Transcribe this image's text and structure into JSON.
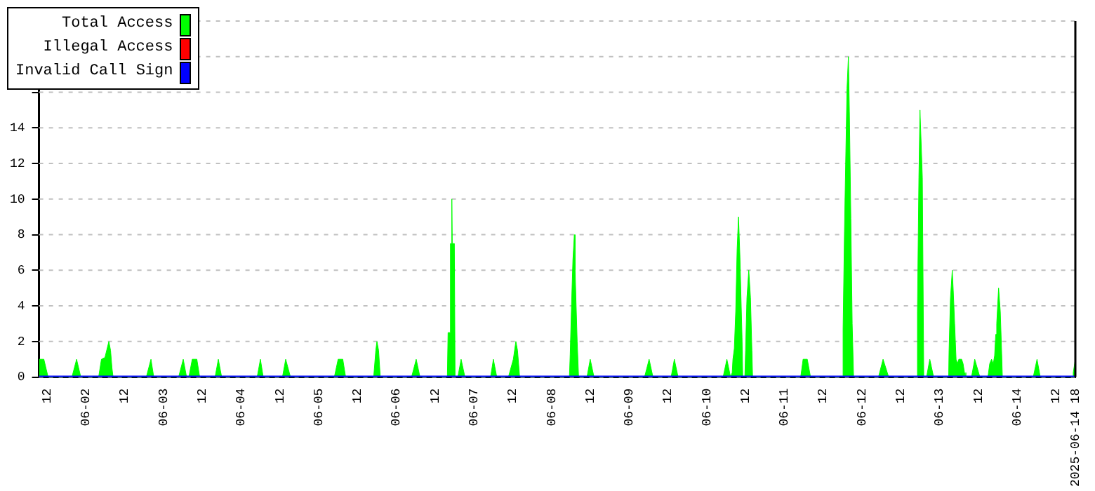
{
  "chart_data": {
    "type": "area",
    "xlim": [
      "2025-06-01T09:30",
      "2025-06-14T18:00"
    ],
    "xticks": [
      {
        "value": "2025-06-01T12:00",
        "label": "12"
      },
      {
        "value": "2025-06-02T00:00",
        "label": "06-02"
      },
      {
        "value": "2025-06-02T12:00",
        "label": "12"
      },
      {
        "value": "2025-06-03T00:00",
        "label": "06-03"
      },
      {
        "value": "2025-06-03T12:00",
        "label": "12"
      },
      {
        "value": "2025-06-04T00:00",
        "label": "06-04"
      },
      {
        "value": "2025-06-04T12:00",
        "label": "12"
      },
      {
        "value": "2025-06-05T00:00",
        "label": "06-05"
      },
      {
        "value": "2025-06-05T12:00",
        "label": "12"
      },
      {
        "value": "2025-06-06T00:00",
        "label": "06-06"
      },
      {
        "value": "2025-06-06T12:00",
        "label": "12"
      },
      {
        "value": "2025-06-07T00:00",
        "label": "06-07"
      },
      {
        "value": "2025-06-07T12:00",
        "label": "12"
      },
      {
        "value": "2025-06-08T00:00",
        "label": "06-08"
      },
      {
        "value": "2025-06-08T12:00",
        "label": "12"
      },
      {
        "value": "2025-06-09T00:00",
        "label": "06-09"
      },
      {
        "value": "2025-06-09T12:00",
        "label": "12"
      },
      {
        "value": "2025-06-10T00:00",
        "label": "06-10"
      },
      {
        "value": "2025-06-10T12:00",
        "label": "12"
      },
      {
        "value": "2025-06-11T00:00",
        "label": "06-11"
      },
      {
        "value": "2025-06-11T12:00",
        "label": "12"
      },
      {
        "value": "2025-06-12T00:00",
        "label": "06-12"
      },
      {
        "value": "2025-06-12T12:00",
        "label": "12"
      },
      {
        "value": "2025-06-13T00:00",
        "label": "06-13"
      },
      {
        "value": "2025-06-13T12:00",
        "label": "12"
      },
      {
        "value": "2025-06-14T00:00",
        "label": "06-14"
      },
      {
        "value": "2025-06-14T12:00",
        "label": "12"
      },
      {
        "value": "2025-06-14T18:00",
        "label": "2025-06-14 18"
      }
    ],
    "ylim": [
      0,
      20
    ],
    "yticks": [
      0,
      2,
      4,
      6,
      8,
      10,
      12,
      14,
      {
        "value": 16,
        "label": null
      },
      {
        "value": 18,
        "label": null
      },
      {
        "value": 20,
        "label": null
      }
    ],
    "grid": "y",
    "legend": "top left",
    "series": [
      {
        "name": "Total Access",
        "color": "#00ff00",
        "x": [
          "2025-06-01T09:30",
          "2025-06-01T11:00",
          "2025-06-01T12:18",
          "2025-06-01T19:41",
          "2025-06-01T21:07",
          "2025-06-01T22:25",
          "2025-06-02T03:56",
          "2025-06-02T04:48",
          "2025-06-02T05:53",
          "2025-06-02T07:06",
          "2025-06-02T07:37",
          "2025-06-02T08:04",
          "2025-06-02T08:24",
          "2025-06-02T18:41",
          "2025-06-02T20:07",
          "2025-06-02T20:59",
          "2025-06-03T04:40",
          "2025-06-03T06:06",
          "2025-06-03T07:08",
          "2025-06-03T07:50",
          "2025-06-03T08:53",
          "2025-06-03T10:19",
          "2025-06-03T11:11",
          "2025-06-03T15:57",
          "2025-06-03T16:57",
          "2025-06-03T17:59",
          "2025-06-04T04:58",
          "2025-06-04T05:58",
          "2025-06-04T06:50",
          "2025-06-04T12:47",
          "2025-06-04T13:47",
          "2025-06-04T15:16",
          "2025-06-05T04:50",
          "2025-06-05T06:00",
          "2025-06-05T07:27",
          "2025-06-05T08:19",
          "2025-06-05T17:00",
          "2025-06-05T17:39",
          "2025-06-05T18:00",
          "2025-06-05T18:31",
          "2025-06-05T19:02",
          "2025-06-06T04:43",
          "2025-06-06T06:09",
          "2025-06-06T07:19",
          "2025-06-06T15:47",
          "2025-06-06T16:00",
          "2025-06-06T16:39",
          "2025-06-06T16:44",
          "2025-06-06T17:05",
          "2025-06-06T17:10",
          "2025-06-06T17:18",
          "2025-06-06T17:57",
          "2025-06-06T18:10",
          "2025-06-06T19:02",
          "2025-06-06T20:02",
          "2025-06-06T21:13",
          "2025-06-07T05:09",
          "2025-06-07T06:01",
          "2025-06-07T07:04",
          "2025-06-07T10:40",
          "2025-06-07T12:11",
          "2025-06-07T12:58",
          "2025-06-07T13:29",
          "2025-06-07T14:08",
          "2025-06-08T05:32",
          "2025-06-08T05:46",
          "2025-06-08T06:11",
          "2025-06-08T06:37",
          "2025-06-08T07:04",
          "2025-06-08T07:17",
          "2025-06-08T07:56",
          "2025-06-08T08:22",
          "2025-06-08T10:58",
          "2025-06-08T11:58",
          "2025-06-08T13:08",
          "2025-06-09T04:46",
          "2025-06-09T06:11",
          "2025-06-09T07:22",
          "2025-06-09T12:59",
          "2025-06-09T13:59",
          "2025-06-09T15:09",
          "2025-06-10T05:04",
          "2025-06-10T06:14",
          "2025-06-10T07:22",
          "2025-06-10T07:53",
          "2025-06-10T08:06",
          "2025-06-10T08:32",
          "2025-06-10T08:58",
          "2025-06-10T09:24",
          "2025-06-10T09:50",
          "2025-06-10T10:16",
          "2025-06-10T10:55",
          "2025-06-10T11:08",
          "2025-06-10T11:47",
          "2025-06-10T12:01",
          "2025-06-10T12:26",
          "2025-06-10T13:00",
          "2025-06-10T13:32",
          "2025-06-10T13:58",
          "2025-06-10T14:11",
          "2025-06-11T05:04",
          "2025-06-11T05:48",
          "2025-06-11T07:06",
          "2025-06-11T08:06",
          "2025-06-11T17:57",
          "2025-06-11T18:10",
          "2025-06-11T18:36",
          "2025-06-11T19:02",
          "2025-06-11T19:23",
          "2025-06-11T19:49",
          "2025-06-11T20:07",
          "2025-06-11T20:34",
          "2025-06-11T20:59",
          "2025-06-11T21:25",
          "2025-06-12T05:07",
          "2025-06-12T06:32",
          "2025-06-12T08:16",
          "2025-06-12T16:57",
          "2025-06-12T17:10",
          "2025-06-12T17:37",
          "2025-06-12T17:57",
          "2025-06-12T18:41",
          "2025-06-12T19:07",
          "2025-06-12T19:59",
          "2025-06-12T20:59",
          "2025-06-12T22:10",
          "2025-06-13T02:49",
          "2025-06-13T02:56",
          "2025-06-13T03:22",
          "2025-06-13T03:56",
          "2025-06-13T04:14",
          "2025-06-13T04:40",
          "2025-06-13T05:07",
          "2025-06-13T05:32",
          "2025-06-13T05:58",
          "2025-06-13T06:50",
          "2025-06-13T07:17",
          "2025-06-13T07:43",
          "2025-06-13T08:08",
          "2025-06-13T09:53",
          "2025-06-13T10:53",
          "2025-06-13T12:29",
          "2025-06-13T14:58",
          "2025-06-13T15:31",
          "2025-06-13T16:05",
          "2025-06-13T16:37",
          "2025-06-13T17:02",
          "2025-06-13T17:23",
          "2025-06-13T17:41",
          "2025-06-13T18:16",
          "2025-06-13T18:47",
          "2025-06-13T19:13",
          "2025-06-13T19:26",
          "2025-06-14T04:59",
          "2025-06-14T06:09",
          "2025-06-14T07:09",
          "2025-06-14T17:08",
          "2025-06-14T17:21",
          "2025-06-14T17:47",
          "2025-06-14T18:00"
        ],
        "values": [
          1,
          1,
          0,
          0,
          1,
          0,
          0,
          1,
          1.1,
          2,
          1.5,
          0.5,
          0,
          0,
          1,
          0,
          0,
          1,
          0,
          0,
          1,
          1,
          0,
          0,
          1,
          0,
          0,
          1,
          0,
          0,
          1,
          0,
          0,
          1,
          1,
          0,
          0,
          1.5,
          2,
          1.5,
          0,
          0,
          1,
          0,
          0,
          2.5,
          2.5,
          7.5,
          7.5,
          10,
          7.5,
          7.5,
          0,
          0,
          1,
          0,
          0,
          1,
          0,
          0,
          1,
          2,
          1.5,
          0,
          0,
          1.25,
          4,
          6.6,
          8,
          6,
          2,
          0,
          0,
          1,
          0,
          0,
          1,
          0,
          0,
          1,
          0,
          0,
          1,
          0,
          0.25,
          1,
          1.6,
          3.7,
          7.2,
          9,
          6.75,
          2.2,
          0,
          0,
          1.5,
          4.45,
          6,
          4.45,
          1.5,
          0,
          0,
          1,
          1,
          0,
          0,
          2.7,
          8.2,
          12.7,
          16.2,
          18,
          14.9,
          8.9,
          3,
          0,
          0,
          1,
          0,
          0,
          3.7,
          11.2,
          15,
          11.2,
          0,
          0,
          1,
          0,
          0,
          1.4,
          4.4,
          6,
          4.9,
          3,
          1,
          0.75,
          1,
          1,
          0.75,
          0.25,
          0,
          0,
          1,
          0,
          0,
          0.75,
          1,
          0.75,
          1.2,
          2.4,
          3,
          5,
          3.7,
          1.3,
          0,
          0,
          1,
          0,
          0,
          0.25,
          0.75,
          1
        ]
      },
      {
        "name": "Illegal Access",
        "color": "#ff0000",
        "type": "line"
      },
      {
        "name": "Invalid Call Sign",
        "color": "#0000ff",
        "type": "line",
        "x": [
          "2025-06-01T09:30",
          "2025-06-14T18:00"
        ],
        "values": [
          0,
          0
        ]
      }
    ]
  }
}
